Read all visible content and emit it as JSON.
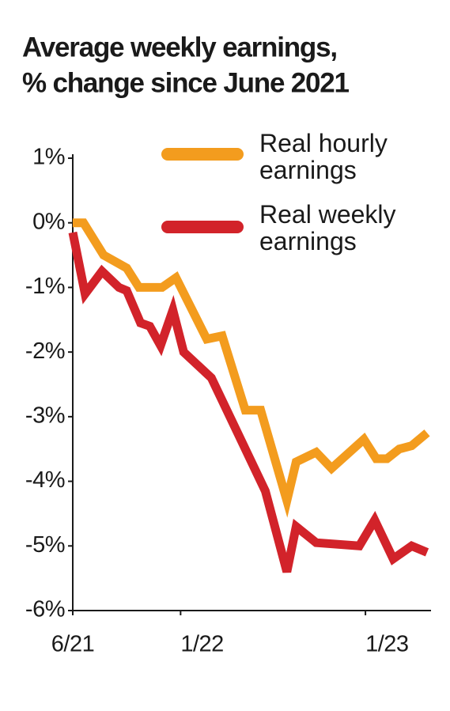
{
  "chart_data": {
    "type": "line",
    "title": [
      "Average weekly earnings,",
      "% change since June 2021"
    ],
    "xlim": [
      0,
      23
    ],
    "xticks": [
      {
        "value": 0,
        "label": "6/21"
      },
      {
        "value": 7,
        "label": "1/22"
      },
      {
        "value": 19,
        "label": "1/23"
      }
    ],
    "ylim": [
      -6,
      1
    ],
    "yticks": [
      {
        "value": 1,
        "label": "1%"
      },
      {
        "value": 0,
        "label": "0%"
      },
      {
        "value": -1,
        "label": "-1%"
      },
      {
        "value": -2,
        "label": "-2%"
      },
      {
        "value": -3,
        "label": "-3%"
      },
      {
        "value": -4,
        "label": "-4%"
      },
      {
        "value": -5,
        "label": "-5%"
      },
      {
        "value": -6,
        "label": "-6%"
      }
    ],
    "series": [
      {
        "name": "Real hourly earnings",
        "color": "#f39c1e",
        "x": [
          0,
          0.7,
          2,
          3.5,
          4.3,
          5.8,
          6.7,
          8.7,
          9.7,
          11.2,
          12.2,
          13.9,
          14.5,
          15.8,
          16.8,
          18.9,
          19.7,
          20.4,
          21.2,
          22,
          23
        ],
        "values": [
          0,
          0,
          -0.5,
          -0.7,
          -1.0,
          -1.0,
          -0.85,
          -1.8,
          -1.75,
          -2.9,
          -2.9,
          -4.3,
          -3.7,
          -3.55,
          -3.8,
          -3.35,
          -3.65,
          -3.65,
          -3.5,
          -3.45,
          -3.25
        ]
      },
      {
        "name": "Real weekly earnings",
        "color": "#d2232a",
        "x": [
          0,
          0.8,
          1.9,
          3.0,
          3.5,
          4.4,
          5.0,
          5.7,
          6.5,
          7.2,
          9.0,
          10.7,
          12.5,
          13.9,
          14.5,
          15.8,
          18.6,
          19.6,
          20.8,
          22,
          23
        ],
        "values": [
          -0.15,
          -1.1,
          -0.75,
          -1.0,
          -1.05,
          -1.55,
          -1.6,
          -1.9,
          -1.35,
          -2.0,
          -2.4,
          -3.25,
          -4.15,
          -5.4,
          -4.7,
          -4.95,
          -5.0,
          -4.6,
          -5.2,
          -5.0,
          -5.1
        ]
      }
    ]
  }
}
